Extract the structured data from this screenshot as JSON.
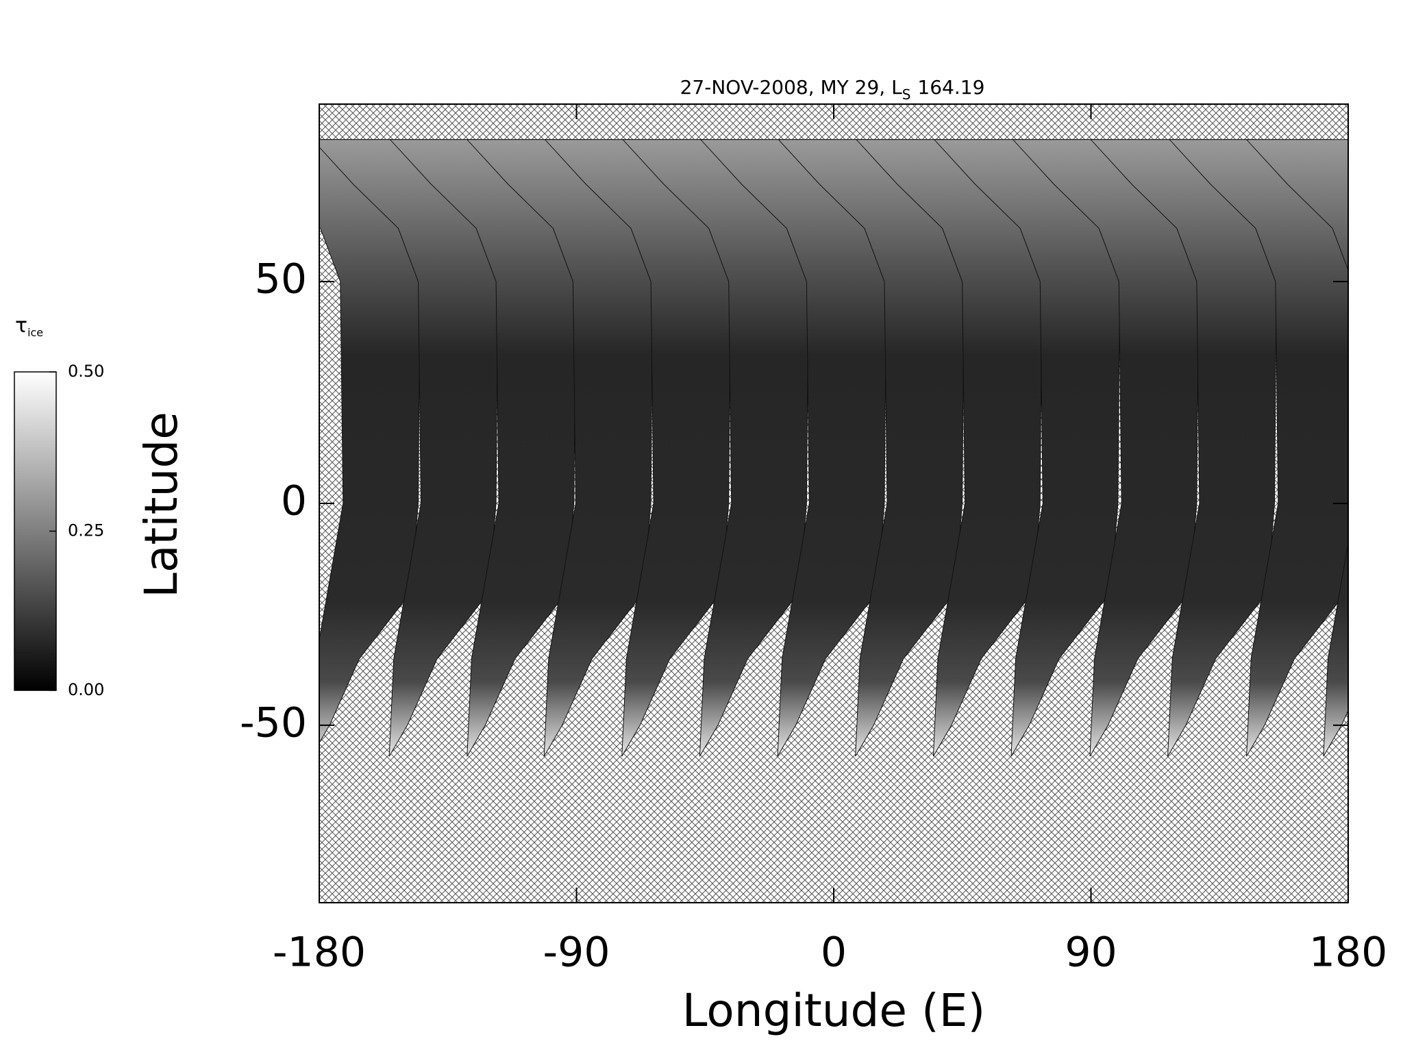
{
  "chart_data": {
    "type": "map",
    "title": "27-NOV-2008, MY 29,  L",
    "title_subscript": "S",
    "title_suffix": "164.19",
    "x_label": "Longitude (E)",
    "y_label": "Latitude",
    "xlim": [
      -180,
      180
    ],
    "xticks": [
      -180,
      -90,
      0,
      90,
      180
    ],
    "ylim": [
      -90,
      90
    ],
    "yticks": [
      -50,
      0,
      50
    ],
    "colorbar_label": "τ",
    "colorbar_label_subscript": "ice",
    "clim": [
      0,
      0.5
    ],
    "cticks": [
      {
        "value": 0,
        "label": "0.00"
      },
      {
        "value": 0.25,
        "label": "0.25"
      },
      {
        "value": 0.5,
        "label": "0.50"
      }
    ]
  }
}
